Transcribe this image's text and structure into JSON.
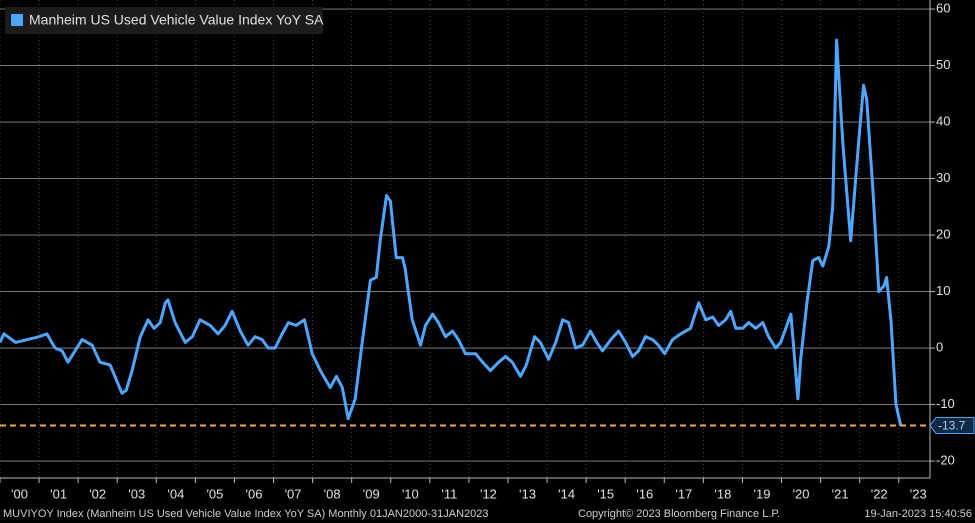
{
  "chart_data": {
    "type": "line",
    "legend_text": "Manheim US Used Vehicle Value Index YoY SA",
    "series": [
      {
        "name": "Manheim US Used Vehicle Value Index YoY SA",
        "color": "#4da6ff",
        "x": [
          2000.0,
          2000.1,
          2000.4,
          2000.7,
          2001.0,
          2001.2,
          2001.41,
          2001.59,
          2001.74,
          2002.1,
          2002.36,
          2002.56,
          2002.82,
          2003.12,
          2003.23,
          2003.38,
          2003.59,
          2003.79,
          2003.94,
          2004.1,
          2004.23,
          2004.3,
          2004.48,
          2004.74,
          2004.92,
          2005.12,
          2005.38,
          2005.58,
          2005.76,
          2005.94,
          2006.15,
          2006.35,
          2006.53,
          2006.71,
          2006.86,
          2007.04,
          2007.22,
          2007.38,
          2007.58,
          2007.79,
          2007.99,
          2008.2,
          2008.45,
          2008.61,
          2008.76,
          2008.91,
          2009.09,
          2009.27,
          2009.48,
          2009.63,
          2009.73,
          2009.89,
          2009.99,
          2010.14,
          2010.3,
          2010.37,
          2010.55,
          2010.76,
          2010.89,
          2011.07,
          2011.22,
          2011.4,
          2011.58,
          2011.73,
          2011.91,
          2012.17,
          2012.35,
          2012.55,
          2012.76,
          2012.94,
          2013.11,
          2013.32,
          2013.47,
          2013.68,
          2013.83,
          2014.04,
          2014.22,
          2014.4,
          2014.55,
          2014.73,
          2014.91,
          2015.11,
          2015.27,
          2015.42,
          2015.63,
          2015.83,
          2016.01,
          2016.19,
          2016.34,
          2016.52,
          2016.7,
          2016.85,
          2017.01,
          2017.21,
          2017.42,
          2017.67,
          2017.88,
          2018.06,
          2018.24,
          2018.39,
          2018.57,
          2018.7,
          2018.83,
          2019.01,
          2019.16,
          2019.34,
          2019.52,
          2019.67,
          2019.85,
          2019.98,
          2020.24,
          2020.42,
          2020.49,
          2020.65,
          2020.8,
          2020.95,
          2021.06,
          2021.21,
          2021.31,
          2021.41,
          2021.57,
          2021.77,
          2021.98,
          2022.1,
          2022.18,
          2022.34,
          2022.49,
          2022.62,
          2022.69,
          2022.8,
          2022.93,
          2023.05
        ],
        "values": [
          1,
          2.5,
          1,
          1.5,
          2,
          2.5,
          0,
          -0.5,
          -2.5,
          1.5,
          0.5,
          -2.5,
          -3,
          -8,
          -7.5,
          -4,
          2,
          5,
          3.5,
          4.5,
          8,
          8.5,
          4.5,
          1,
          2,
          5,
          4,
          2.5,
          4,
          6.5,
          3,
          0.5,
          2,
          1.5,
          0,
          0,
          2.5,
          4.5,
          4,
          5,
          -1,
          -4,
          -7,
          -5,
          -7,
          -12.5,
          -9,
          1,
          12,
          12.5,
          19,
          27,
          26,
          16,
          16,
          14,
          5,
          0.5,
          4,
          6,
          4.5,
          2,
          3,
          1.5,
          -1,
          -1,
          -2.5,
          -4,
          -2.5,
          -1.5,
          -2.5,
          -5,
          -3,
          2,
          1,
          -2,
          1,
          5,
          4.5,
          0,
          0.5,
          3,
          1,
          -0.5,
          1.5,
          3,
          1,
          -1.5,
          -0.5,
          2,
          1.5,
          0.5,
          -1,
          1.5,
          2.5,
          3.5,
          8,
          5,
          5.5,
          4,
          5,
          6.5,
          3.5,
          3.5,
          4.5,
          3.5,
          4.5,
          2,
          0,
          1,
          6,
          -9,
          -2,
          8,
          15.5,
          16,
          14.5,
          18,
          25,
          54.5,
          36,
          19,
          37,
          46.5,
          44,
          28,
          10,
          11,
          12.5,
          5,
          -10,
          -13.7
        ]
      }
    ],
    "reference_line": {
      "value": -13.7,
      "color": "#f4a742"
    },
    "xlim": [
      2000,
      2023.8
    ],
    "xticks": [
      {
        "value": 2000,
        "label": "'00"
      },
      {
        "value": 2001,
        "label": "'01"
      },
      {
        "value": 2002,
        "label": "'02"
      },
      {
        "value": 2003,
        "label": "'03"
      },
      {
        "value": 2004,
        "label": "'04"
      },
      {
        "value": 2005,
        "label": "'05"
      },
      {
        "value": 2006,
        "label": "'06"
      },
      {
        "value": 2007,
        "label": "'07"
      },
      {
        "value": 2008,
        "label": "'08"
      },
      {
        "value": 2009,
        "label": "'09"
      },
      {
        "value": 2010,
        "label": "'10"
      },
      {
        "value": 2011,
        "label": "'11"
      },
      {
        "value": 2012,
        "label": "'12"
      },
      {
        "value": 2013,
        "label": "'13"
      },
      {
        "value": 2014,
        "label": "'14"
      },
      {
        "value": 2015,
        "label": "'15"
      },
      {
        "value": 2016,
        "label": "'16"
      },
      {
        "value": 2017,
        "label": "'17"
      },
      {
        "value": 2018,
        "label": "'18"
      },
      {
        "value": 2019,
        "label": "'19"
      },
      {
        "value": 2020,
        "label": "'20"
      },
      {
        "value": 2021,
        "label": "'21"
      },
      {
        "value": 2022,
        "label": "'22"
      },
      {
        "value": 2023,
        "label": "'23"
      }
    ],
    "ylim": [
      -23,
      61.6
    ],
    "yticks": [
      -20,
      -10,
      0,
      10,
      20,
      30,
      40,
      50,
      60
    ],
    "grid": true,
    "footer": {
      "left": "MUVIYOY Index (Manheim US Used Vehicle Value Index YoY SA)  Monthly 01JAN2000-31JAN2023",
      "center": "Copyright© 2023 Bloomberg Finance L.P.",
      "right": "19-Jan-2023 15:40:56"
    }
  }
}
